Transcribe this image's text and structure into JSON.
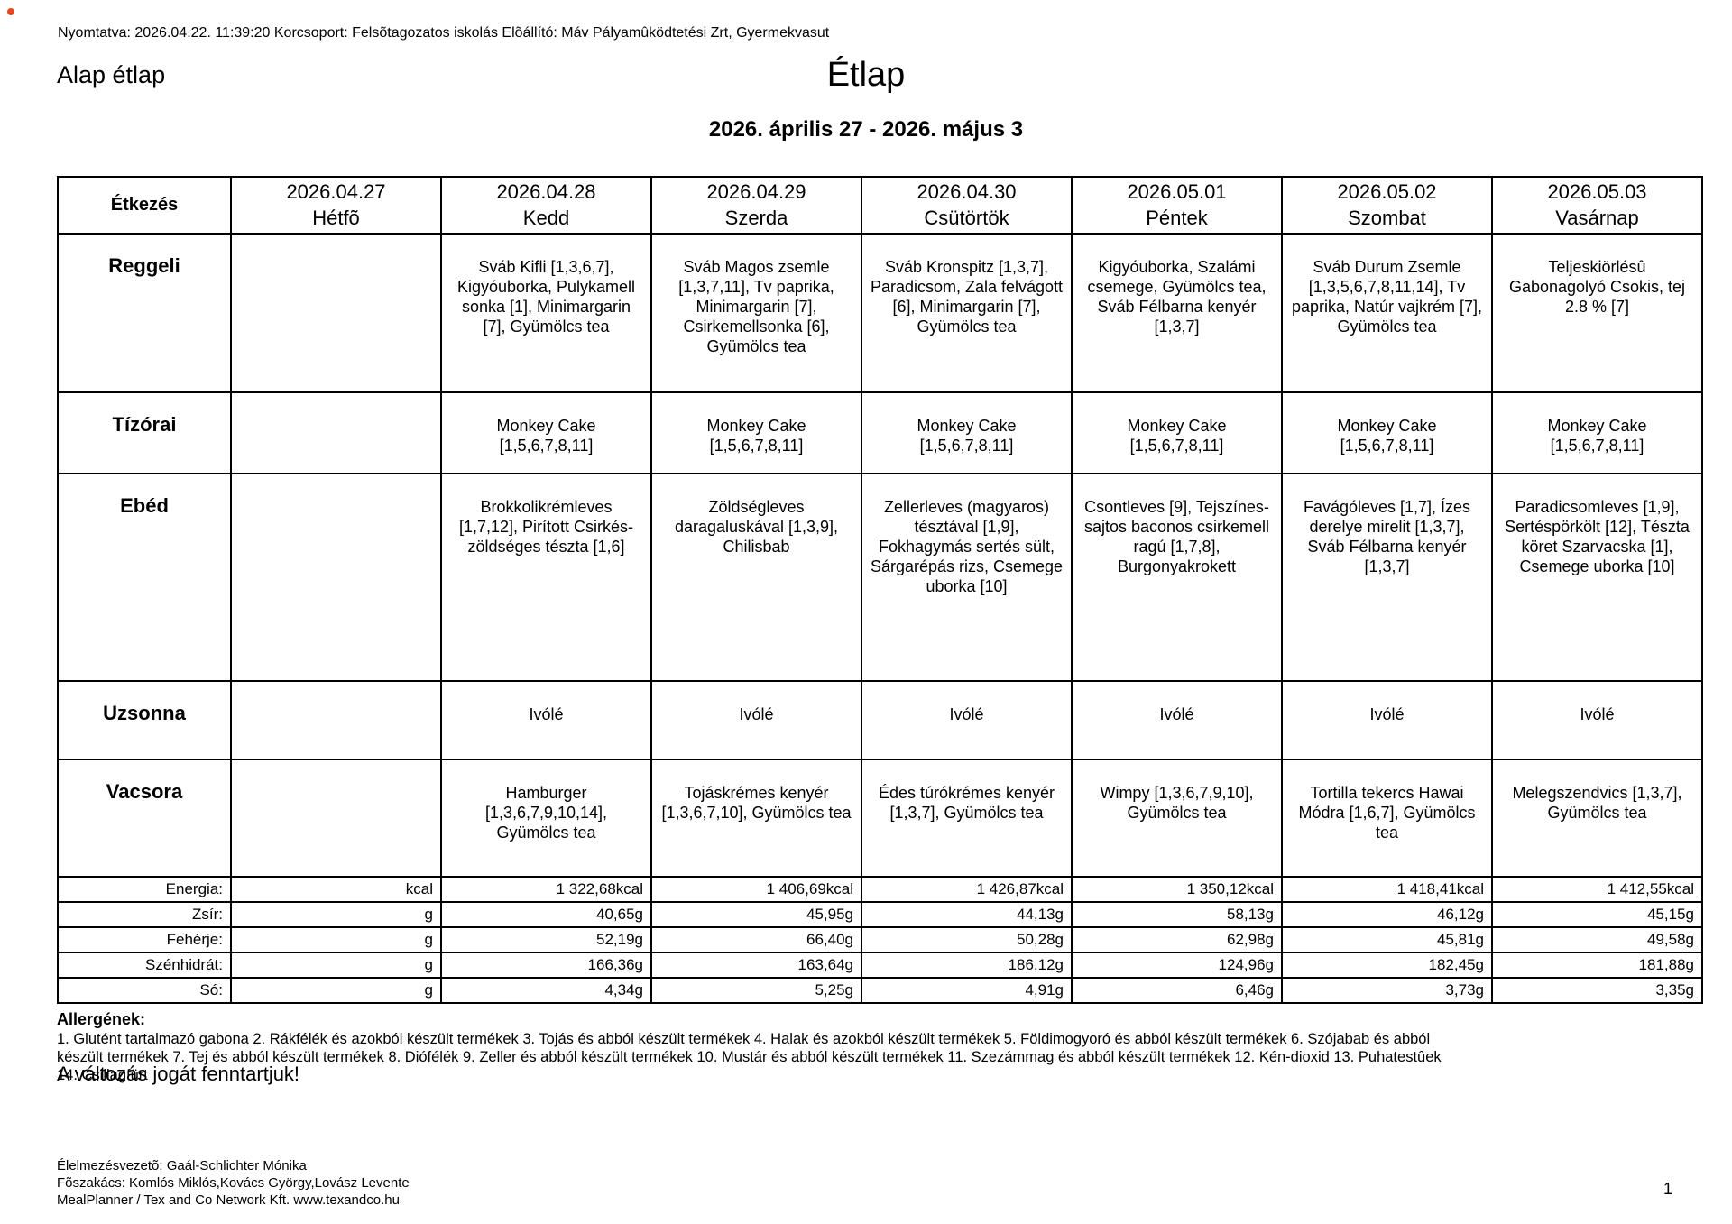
{
  "meta": {
    "printed_line": "Nyomtatva: 2026.04.22. 11:39:20 Korcsoport: Felsõtagozatos iskolás Elõállító: Máv Pályamûködtetési Zrt, Gyermekvasut"
  },
  "titles": {
    "left_title": "Alap étlap",
    "main_title": "Étlap",
    "date_range": "2026. április 27 - 2026. május 3"
  },
  "menu": {
    "corner_label": "Étkezés",
    "days": [
      {
        "date": "2026.04.27",
        "name": "Hétfõ"
      },
      {
        "date": "2026.04.28",
        "name": "Kedd"
      },
      {
        "date": "2026.04.29",
        "name": "Szerda"
      },
      {
        "date": "2026.04.30",
        "name": "Csütörtök"
      },
      {
        "date": "2026.05.01",
        "name": "Péntek"
      },
      {
        "date": "2026.05.02",
        "name": "Szombat"
      },
      {
        "date": "2026.05.03",
        "name": "Vasárnap"
      }
    ],
    "rows": [
      {
        "label": "Reggeli",
        "cells": [
          "",
          "Sváb Kifli [1,3,6,7], Kigyóuborka, Pulykamell sonka [1], Minimargarin [7], Gyümölcs tea",
          "Sváb Magos zsemle [1,3,7,11], Tv paprika, Minimargarin [7], Csirkemellsonka [6], Gyümölcs tea",
          "Sváb Kronspitz [1,3,7], Paradicsom, Zala felvágott [6], Minimargarin [7], Gyümölcs tea",
          "Kigyóuborka, Szalámi csemege, Gyümölcs tea, Sváb Félbarna kenyér [1,3,7]",
          "Sváb Durum Zsemle [1,3,5,6,7,8,11,14], Tv paprika, Natúr vajkrém [7], Gyümölcs tea",
          "Teljeskiörlésû Gabonagolyó Csokis, tej 2.8 % [7]"
        ]
      },
      {
        "label": "Tízórai",
        "cells": [
          "",
          "Monkey Cake [1,5,6,7,8,11]",
          "Monkey Cake [1,5,6,7,8,11]",
          "Monkey Cake [1,5,6,7,8,11]",
          "Monkey Cake [1,5,6,7,8,11]",
          "Monkey Cake [1,5,6,7,8,11]",
          "Monkey Cake [1,5,6,7,8,11]"
        ]
      },
      {
        "label": "Ebéd",
        "cells": [
          "",
          "Brokkolikrémleves [1,7,12], Pirított Csirkés-zöldséges tészta [1,6]",
          "Zöldségleves daragaluskával [1,3,9], Chilisbab",
          "Zellerleves (magyaros) tésztával [1,9], Fokhagymás sertés sült, Sárgarépás rizs, Csemege uborka [10]",
          "Csontleves [9], Tejszínes-sajtos baconos csirkemell ragú [1,7,8], Burgonyakrokett",
          "Favágóleves [1,7], Ízes derelye mirelit [1,3,7], Sváb Félbarna kenyér [1,3,7]",
          "Paradicsomleves [1,9], Sertéspörkölt [12], Tészta köret Szarvacska [1], Csemege uborka [10]"
        ]
      },
      {
        "label": "Uzsonna",
        "cells": [
          "",
          "Ivólé",
          "Ivólé",
          "Ivólé",
          "Ivólé",
          "Ivólé",
          "Ivólé"
        ]
      },
      {
        "label": "Vacsora",
        "cells": [
          "",
          "Hamburger [1,3,6,7,9,10,14], Gyümölcs tea",
          "Tojáskrémes kenyér [1,3,6,7,10], Gyümölcs tea",
          "Édes túrókrémes kenyér [1,3,7], Gyümölcs tea",
          "Wimpy [1,3,6,7,9,10], Gyümölcs tea",
          "Tortilla tekercs Hawai Módra [1,6,7], Gyümölcs tea",
          "Melegszendvics [1,3,7], Gyümölcs tea"
        ]
      }
    ]
  },
  "nutrients": {
    "rows": [
      {
        "label": "Energia:",
        "unit": "kcal",
        "values": [
          "1 322,68kcal",
          "1 406,69kcal",
          "1 426,87kcal",
          "1 350,12kcal",
          "1 418,41kcal",
          "1 412,55kcal"
        ]
      },
      {
        "label": "Zsír:",
        "unit": "g",
        "values": [
          "40,65g",
          "45,95g",
          "44,13g",
          "58,13g",
          "46,12g",
          "45,15g"
        ]
      },
      {
        "label": "Fehérje:",
        "unit": "g",
        "values": [
          "52,19g",
          "66,40g",
          "50,28g",
          "62,98g",
          "45,81g",
          "49,58g"
        ]
      },
      {
        "label": "Szénhidrát:",
        "unit": "g",
        "values": [
          "166,36g",
          "163,64g",
          "186,12g",
          "124,96g",
          "182,45g",
          "181,88g"
        ]
      },
      {
        "label": "Só:",
        "unit": "g",
        "values": [
          "4,34g",
          "5,25g",
          "4,91g",
          "6,46g",
          "3,73g",
          "3,35g"
        ]
      }
    ]
  },
  "allergens": {
    "title": "Allergének:",
    "lines": [
      "1. Glutént tartalmazó gabona 2. Rákfélék és azokból készült termékek 3. Tojás és abból készült termékek 4. Halak és azokból készült termékek 5. Földimogyoró és abból készült termékek 6. Szójabab és abból",
      "készült termékek 7. Tej és abból készült termékek 8. Diófélék 9. Zeller és abból készült termékek 10. Mustár és abból készült termékek 11. Szezámmag és abból készült termékek 12. Kén-dioxid 13. Puhatestûek",
      "14. Csillagfürt"
    ],
    "disclaimer": "A változás jogát fenntartjuk!"
  },
  "footer": {
    "lines": [
      "Élelmezésvezetõ: Gaál-Schlichter Mónika",
      "Fõszakács: Komlós Miklós,Kovács György,Lovász Levente",
      "MealPlanner / Tex and Co Network Kft. www.texandco.hu"
    ],
    "page_number": "1"
  }
}
